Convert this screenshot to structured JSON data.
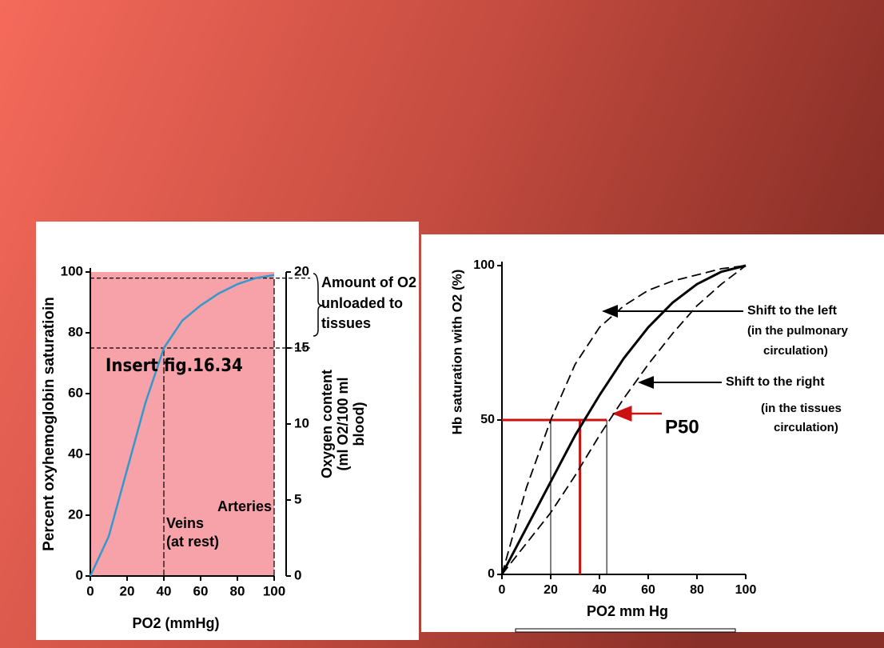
{
  "charts": [
    {
      "chart_data": {
        "type": "line",
        "ylabel": "Percent oxyhemoglobin saturatioin",
        "y2label": [
          "Oxygen content",
          "(ml O2/100 ml",
          "blood)"
        ],
        "xlabel": "PO2 (mmHg)",
        "x": [
          0,
          10,
          20,
          30,
          40,
          50,
          60,
          70,
          80,
          90,
          100
        ],
        "series": [
          {
            "color": "#3399cc",
            "dashed": false,
            "values": [
              0,
              13,
              35,
              57,
              75,
              84,
              89,
              93,
              96,
              98,
              99
            ]
          }
        ],
        "xlim": [
          0,
          100
        ],
        "xticks": [
          0,
          20,
          40,
          60,
          80,
          100
        ],
        "ylim": [
          0,
          100
        ],
        "yticks": [
          0,
          20,
          40,
          60,
          80,
          100
        ],
        "y2lim": [
          0,
          20
        ],
        "y2ticks": [
          0,
          5,
          10,
          15,
          20
        ],
        "ref_points": [
          {
            "x": 40,
            "y": 75
          },
          {
            "x": 100,
            "y": 98
          }
        ],
        "background": "#f7a1a8",
        "annotations": [
          "Amount of O2",
          "unloaded to",
          "tissues",
          "Veins",
          "(at rest)",
          "Arteries",
          "Insert fig.16.34"
        ]
      }
    },
    {
      "chart_data": {
        "type": "line",
        "ylabel": "Hb saturation with O2 (%)",
        "xlabel": "PO2 mm Hg",
        "x": [
          0,
          10,
          20,
          30,
          40,
          50,
          60,
          70,
          80,
          90,
          100
        ],
        "series": [
          {
            "color": "#000000",
            "dashed": false,
            "values": [
              0,
              15,
              30,
              45,
              58,
              70,
              80,
              88,
              94,
              98,
              100
            ]
          },
          {
            "color": "#000000",
            "dashed": true,
            "values": [
              0,
              28,
              50,
              68,
              80,
              87,
              92,
              95,
              97,
              99,
              100
            ]
          },
          {
            "color": "#000000",
            "dashed": true,
            "values": [
              0,
              10,
              20,
              32,
              45,
              57,
              68,
              78,
              87,
              94,
              100
            ]
          }
        ],
        "xlim": [
          0,
          100
        ],
        "xticks": [
          0,
          20,
          40,
          60,
          80,
          100
        ],
        "ylim": [
          0,
          100
        ],
        "yticks": [
          0,
          50,
          100
        ],
        "guides": [
          {
            "x": 20,
            "y": 50
          },
          {
            "x": 43,
            "y": 50
          }
        ],
        "p50": {
          "x": 32,
          "y": 50,
          "color": "#cc1111"
        },
        "background": "#ffffff",
        "annotations": [
          "Shift to the left",
          "(in the pulmonary",
          "circulation)",
          "Shift to the right",
          "(in the tissues",
          "circulation)",
          "P50"
        ]
      }
    }
  ]
}
